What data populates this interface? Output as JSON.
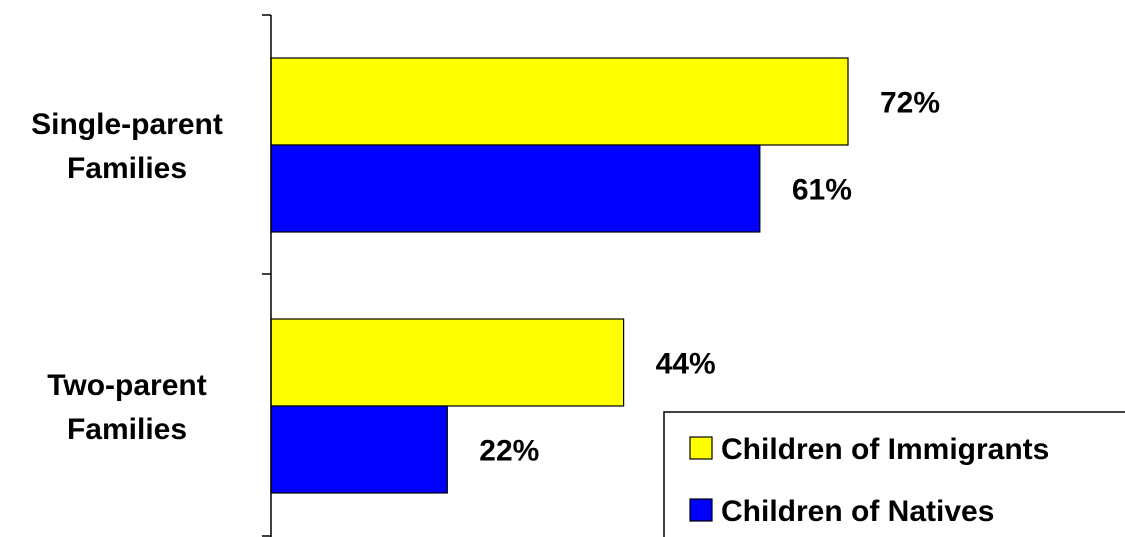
{
  "chart_data": {
    "type": "bar",
    "orientation": "horizontal",
    "categories": [
      [
        "Single-parent",
        "Families"
      ],
      [
        "Two-parent",
        "Families"
      ]
    ],
    "series": [
      {
        "name": "Children of Immigrants",
        "color": "#ffff00",
        "values": [
          72,
          44
        ],
        "labels": [
          "72%",
          "44%"
        ]
      },
      {
        "name": "Children of Natives",
        "color": "#0000ff",
        "values": [
          61,
          22
        ],
        "labels": [
          "61%",
          "22%"
        ]
      }
    ],
    "xlim": [
      0,
      100
    ],
    "grid": false,
    "legend_position": "bottom-right"
  }
}
